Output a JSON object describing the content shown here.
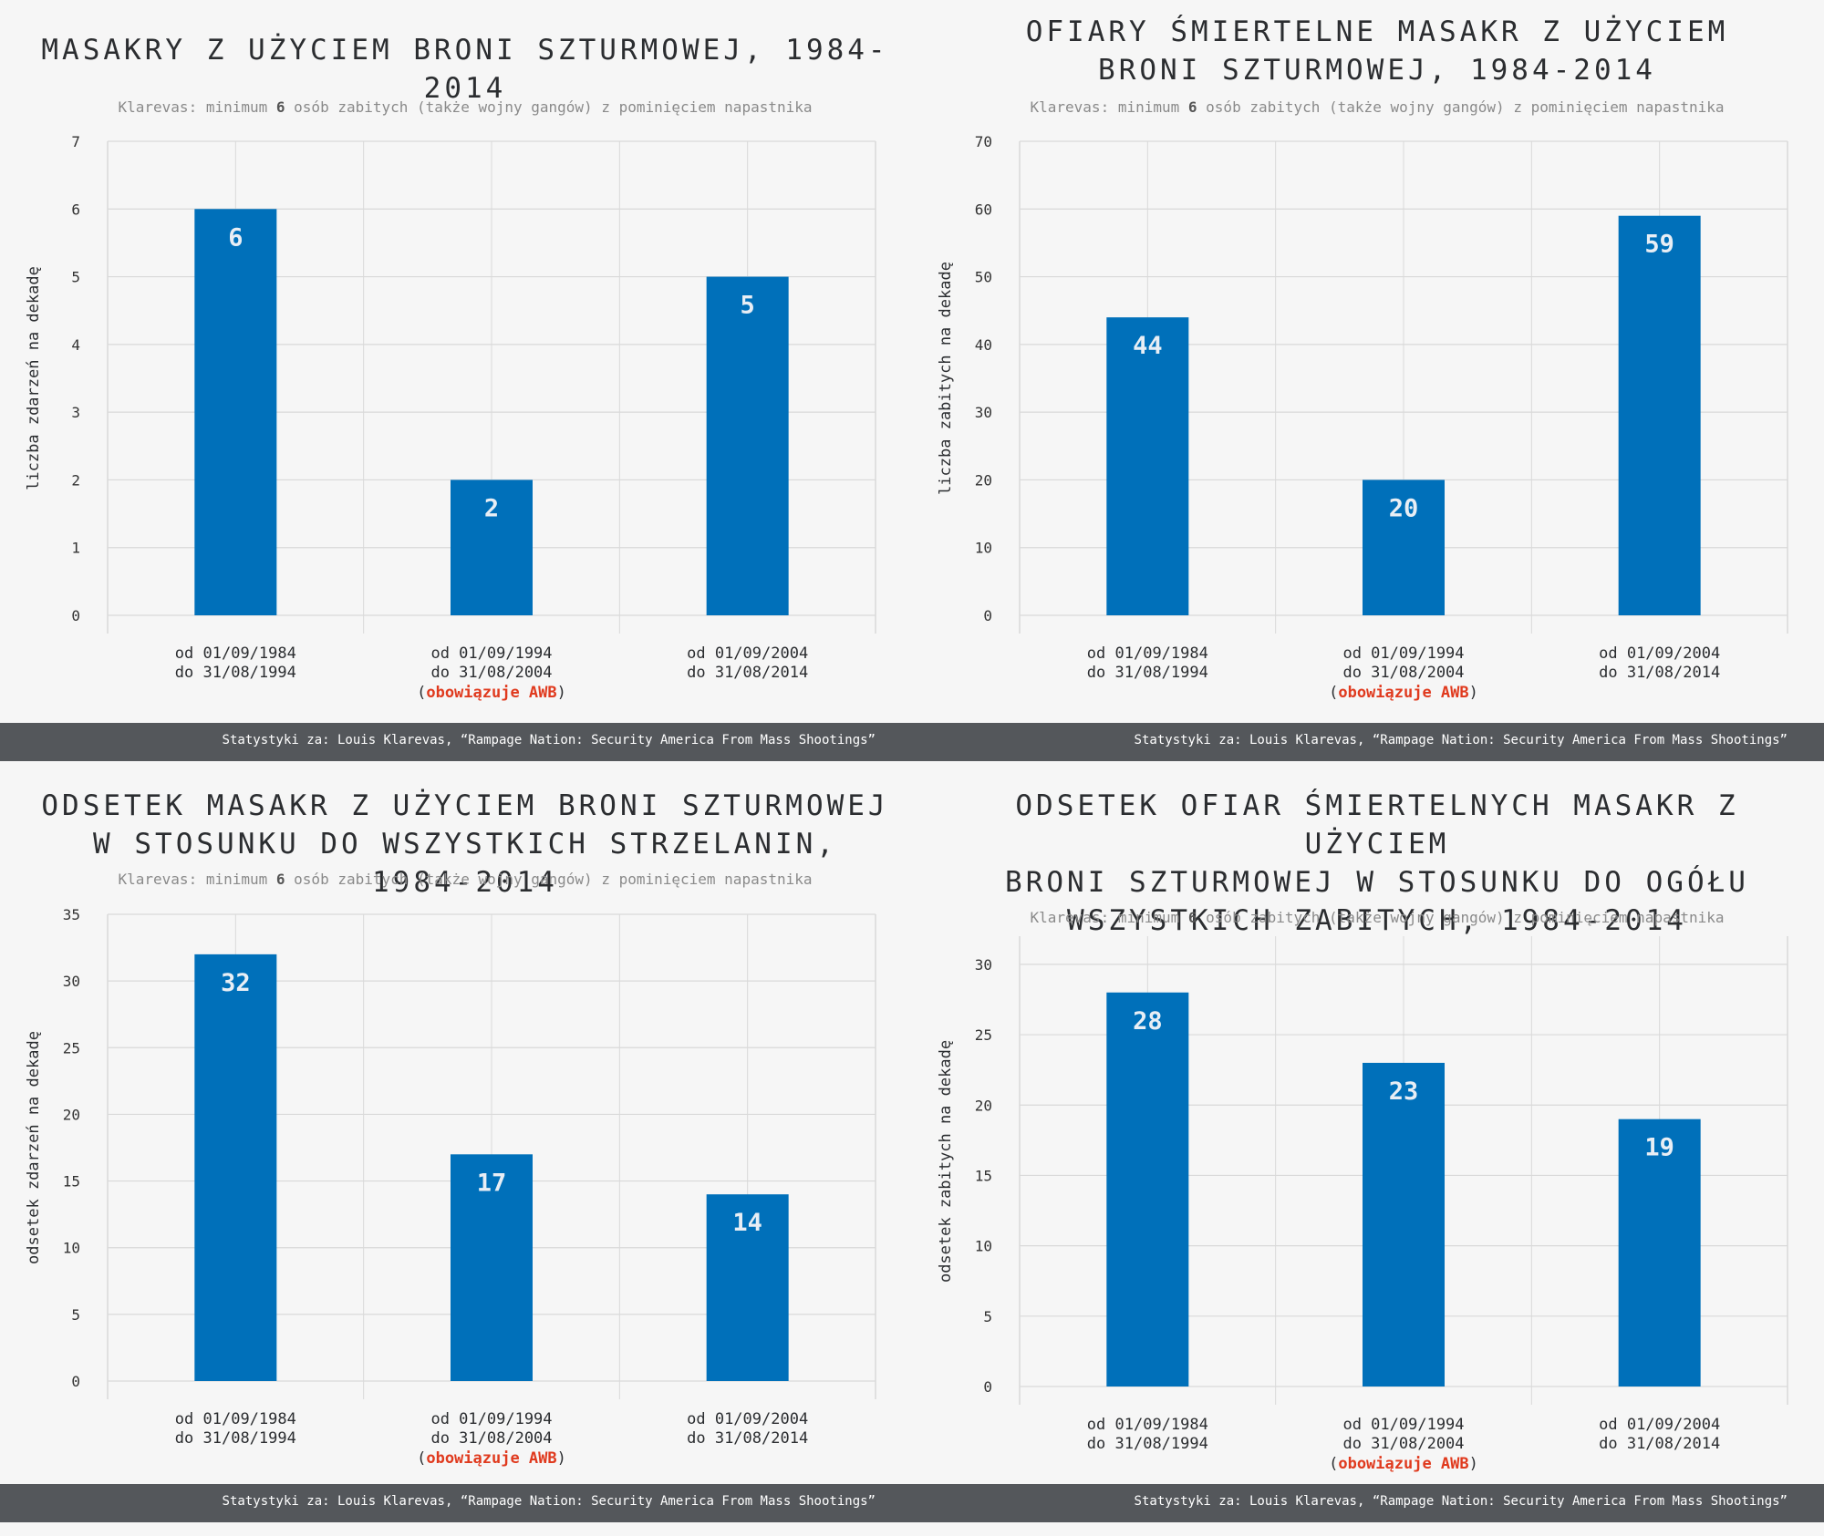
{
  "source_note": "Statystyki za: Louis Klarevas, “Rampage Nation: Security America From Mass Shootings”",
  "subtitle": {
    "pre": "Klarevas: minimum ",
    "bold": "6",
    "post": " osób zabitych (także wojny gangów) z pominięciem napastnika"
  },
  "colors": {
    "bar": "#0070ba",
    "awb": "#e03a1e",
    "grid": "#d9d9d9",
    "footer": "#54575b"
  },
  "categories": [
    {
      "line1": "od 01/09/1984",
      "line2": "do 31/08/1994",
      "note": ""
    },
    {
      "line1": "od 01/09/1994",
      "line2": "do 31/08/2004",
      "note": "obowiązuje AWB"
    },
    {
      "line1": "od 01/09/2004",
      "line2": "do 31/08/2014",
      "note": ""
    }
  ],
  "chart_data": [
    {
      "type": "bar",
      "title": "MASAKRY Z UŻYCIEM BRONI SZTURMOWEJ, 1984-2014",
      "ylabel": "liczba zdarzeń na dekadę",
      "categories": [
        "od 01/09/1984 do 31/08/1994",
        "od 01/09/1994 do 31/08/2004",
        "od 01/09/2004 do 31/08/2014"
      ],
      "values": [
        6,
        2,
        5
      ],
      "ylim": [
        0,
        7
      ],
      "yticks": [
        0,
        1,
        2,
        3,
        4,
        5,
        6,
        7
      ],
      "grid": true
    },
    {
      "type": "bar",
      "title": "OFIARY ŚMIERTELNE MASAKR Z UŻYCIEM\nBRONI SZTURMOWEJ, 1984-2014",
      "ylabel": "liczba zabitych na dekadę",
      "categories": [
        "od 01/09/1984 do 31/08/1994",
        "od 01/09/1994 do 31/08/2004",
        "od 01/09/2004 do 31/08/2014"
      ],
      "values": [
        44,
        20,
        59
      ],
      "ylim": [
        0,
        70
      ],
      "yticks": [
        0,
        10,
        20,
        30,
        40,
        50,
        60,
        70
      ],
      "grid": true
    },
    {
      "type": "bar",
      "title": "ODSETEK MASAKR Z UŻYCIEM BRONI SZTURMOWEJ\nW STOSUNKU DO WSZYSTKICH STRZELANIN, 1984-2014",
      "ylabel": "odsetek zdarzeń na dekadę",
      "categories": [
        "od 01/09/1984 do 31/08/1994",
        "od 01/09/1994 do 31/08/2004",
        "od 01/09/2004 do 31/08/2014"
      ],
      "values": [
        32,
        17,
        14
      ],
      "ylim": [
        0,
        35
      ],
      "yticks": [
        0,
        5,
        10,
        15,
        20,
        25,
        30,
        35
      ],
      "grid": true
    },
    {
      "type": "bar",
      "title": "ODSETEK OFIAR ŚMIERTELNYCH MASAKR Z UŻYCIEM\nBRONI SZTURMOWEJ W STOSUNKU DO OGÓŁU\nWSZYSTKICH ZABITYCH, 1984-2014",
      "ylabel": "odsetek zabitych na dekadę",
      "categories": [
        "od 01/09/1984 do 31/08/1994",
        "od 01/09/1994 do 31/08/2004",
        "od 01/09/2004 do 31/08/2014"
      ],
      "values": [
        28,
        23,
        19
      ],
      "ylim": [
        0,
        32
      ],
      "yticks": [
        0,
        5,
        10,
        15,
        20,
        25,
        30
      ],
      "grid": true
    }
  ]
}
